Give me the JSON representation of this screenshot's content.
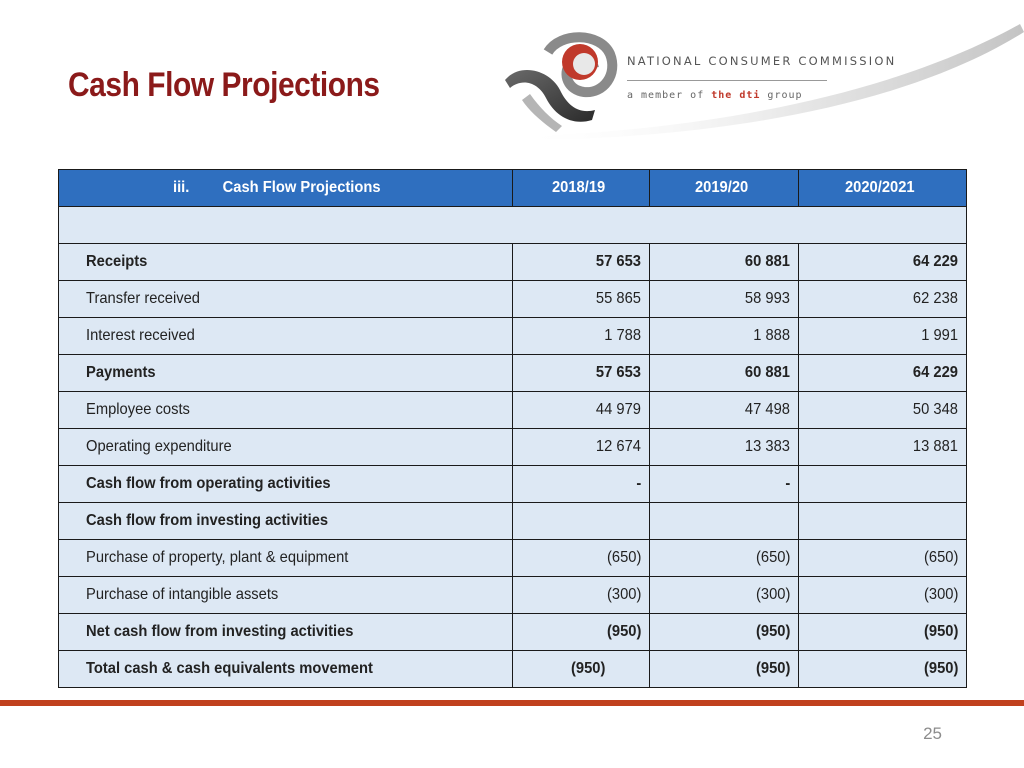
{
  "slide": {
    "title": "Cash Flow Projections",
    "page_number": "25"
  },
  "logo": {
    "organization": "NATIONAL CONSUMER COMMISSION",
    "tagline_prefix": "a member of ",
    "tagline_brand": "the dti",
    "tagline_suffix": " group"
  },
  "table": {
    "header": {
      "number": "iii.",
      "label": "Cash Flow Projections",
      "years": [
        "2018/19",
        "2019/20",
        "2020/2021"
      ]
    },
    "rows": [
      {
        "label": "",
        "values": [
          "",
          "",
          ""
        ],
        "bold": false,
        "merged": true
      },
      {
        "label": "Receipts",
        "values": [
          "57 653",
          "60 881",
          "64 229"
        ],
        "bold": true
      },
      {
        "label": "Transfer received",
        "values": [
          "55 865",
          "58 993",
          "62 238"
        ],
        "bold": false
      },
      {
        "label": "Interest received",
        "values": [
          "1 788",
          "1 888",
          "1 991"
        ],
        "bold": false
      },
      {
        "label": "Payments",
        "values": [
          "57 653",
          "60 881",
          "64 229"
        ],
        "bold": true
      },
      {
        "label": "Employee costs",
        "values": [
          "44 979",
          "47 498",
          "50 348"
        ],
        "bold": false
      },
      {
        "label": "Operating expenditure",
        "values": [
          "12 674",
          "13 383",
          "13 881"
        ],
        "bold": false
      },
      {
        "label": "Cash flow from operating activities",
        "values": [
          "-",
          "-",
          ""
        ],
        "bold": true
      },
      {
        "label": "Cash flow from investing activities",
        "values": [
          "",
          "",
          ""
        ],
        "bold": true
      },
      {
        "label": "Purchase of property, plant & equipment",
        "values": [
          "(650)",
          "(650)",
          "(650)"
        ],
        "bold": false
      },
      {
        "label": "Purchase of intangible assets",
        "values": [
          "(300)",
          "(300)",
          "(300)"
        ],
        "bold": false
      },
      {
        "label": "Net cash flow from investing activities",
        "values": [
          "(950)",
          "(950)",
          "(950)"
        ],
        "bold": true
      },
      {
        "label": "Total cash & cash equivalents movement",
        "values": [
          "(950)",
          "(950)",
          "(950)"
        ],
        "bold": true,
        "first_value_offset": true
      }
    ]
  }
}
